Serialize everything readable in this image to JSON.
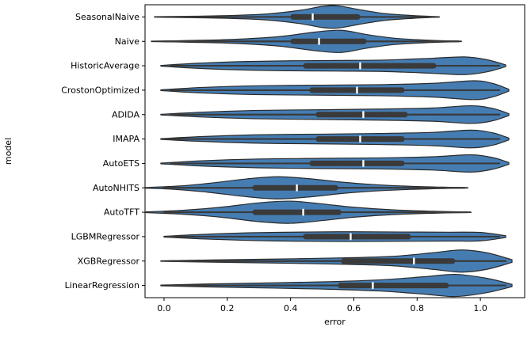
{
  "figure": {
    "background": "#ffffff"
  },
  "chart_data": {
    "type": "violin",
    "orientation": "horizontal",
    "title": "",
    "xlabel": "error",
    "ylabel": "model",
    "xlim": [
      -0.06,
      1.14
    ],
    "xtick_values": [
      0.0,
      0.2,
      0.4,
      0.6,
      0.8,
      1.0
    ],
    "xtick_labels": [
      "0.0",
      "0.2",
      "0.4",
      "0.6",
      "0.8",
      "1.0"
    ],
    "grid": false,
    "legend": "none",
    "colors": {
      "violin_fill": "#3b76af",
      "violin_edge": "#2b2b2b",
      "box": "#3a3a3a",
      "whisker": "#3a3a3a",
      "median": "#ffffff",
      "axis": "#000000"
    },
    "models": [
      {
        "label": "SeasonalNaive",
        "whisker": [
          0.02,
          0.86
        ],
        "box": [
          0.4,
          0.62
        ],
        "median": 0.47,
        "profile": [
          [
            -0.03,
            0.02
          ],
          [
            0.1,
            0.07
          ],
          [
            0.22,
            0.14
          ],
          [
            0.33,
            0.28
          ],
          [
            0.43,
            0.6
          ],
          [
            0.5,
            0.95
          ],
          [
            0.55,
            1.0
          ],
          [
            0.62,
            0.65
          ],
          [
            0.7,
            0.3
          ],
          [
            0.79,
            0.12
          ],
          [
            0.87,
            0.02
          ]
        ]
      },
      {
        "label": "Naive",
        "whisker": [
          0.0,
          0.93
        ],
        "box": [
          0.4,
          0.64
        ],
        "median": 0.49,
        "profile": [
          [
            -0.04,
            0.02
          ],
          [
            0.08,
            0.08
          ],
          [
            0.22,
            0.18
          ],
          [
            0.36,
            0.42
          ],
          [
            0.48,
            0.85
          ],
          [
            0.56,
            1.0
          ],
          [
            0.64,
            0.62
          ],
          [
            0.73,
            0.28
          ],
          [
            0.84,
            0.1
          ],
          [
            0.94,
            0.02
          ]
        ]
      },
      {
        "label": "HistoricAverage",
        "whisker": [
          0.02,
          1.06
        ],
        "box": [
          0.44,
          0.86
        ],
        "median": 0.62,
        "profile": [
          [
            -0.01,
            0.03
          ],
          [
            0.1,
            0.22
          ],
          [
            0.25,
            0.38
          ],
          [
            0.4,
            0.45
          ],
          [
            0.55,
            0.48
          ],
          [
            0.7,
            0.52
          ],
          [
            0.85,
            0.68
          ],
          [
            0.95,
            0.8
          ],
          [
            1.02,
            0.55
          ],
          [
            1.08,
            0.08
          ]
        ]
      },
      {
        "label": "CrostonOptimized",
        "whisker": [
          0.02,
          1.06
        ],
        "box": [
          0.46,
          0.76
        ],
        "median": 0.61,
        "profile": [
          [
            -0.01,
            0.03
          ],
          [
            0.12,
            0.25
          ],
          [
            0.3,
            0.4
          ],
          [
            0.5,
            0.45
          ],
          [
            0.68,
            0.5
          ],
          [
            0.85,
            0.62
          ],
          [
            0.98,
            0.85
          ],
          [
            1.04,
            0.6
          ],
          [
            1.09,
            0.08
          ]
        ]
      },
      {
        "label": "ADIDA",
        "whisker": [
          0.02,
          1.06
        ],
        "box": [
          0.48,
          0.77
        ],
        "median": 0.63,
        "profile": [
          [
            -0.01,
            0.03
          ],
          [
            0.12,
            0.22
          ],
          [
            0.3,
            0.38
          ],
          [
            0.5,
            0.44
          ],
          [
            0.68,
            0.5
          ],
          [
            0.85,
            0.6
          ],
          [
            0.97,
            0.8
          ],
          [
            1.04,
            0.55
          ],
          [
            1.09,
            0.08
          ]
        ]
      },
      {
        "label": "IMAPA",
        "whisker": [
          0.02,
          1.06
        ],
        "box": [
          0.48,
          0.76
        ],
        "median": 0.62,
        "profile": [
          [
            -0.01,
            0.03
          ],
          [
            0.12,
            0.22
          ],
          [
            0.3,
            0.38
          ],
          [
            0.5,
            0.44
          ],
          [
            0.68,
            0.5
          ],
          [
            0.85,
            0.6
          ],
          [
            0.97,
            0.8
          ],
          [
            1.04,
            0.55
          ],
          [
            1.09,
            0.08
          ]
        ]
      },
      {
        "label": "AutoETS",
        "whisker": [
          0.02,
          1.06
        ],
        "box": [
          0.46,
          0.76
        ],
        "median": 0.63,
        "profile": [
          [
            -0.01,
            0.03
          ],
          [
            0.12,
            0.24
          ],
          [
            0.3,
            0.4
          ],
          [
            0.5,
            0.46
          ],
          [
            0.68,
            0.5
          ],
          [
            0.85,
            0.6
          ],
          [
            0.97,
            0.78
          ],
          [
            1.04,
            0.52
          ],
          [
            1.09,
            0.08
          ]
        ]
      },
      {
        "label": "AutoNHITS",
        "whisker": [
          0.0,
          0.95
        ],
        "box": [
          0.28,
          0.55
        ],
        "median": 0.42,
        "profile": [
          [
            -0.06,
            0.03
          ],
          [
            0.04,
            0.15
          ],
          [
            0.14,
            0.4
          ],
          [
            0.26,
            0.8
          ],
          [
            0.36,
            1.0
          ],
          [
            0.46,
            0.82
          ],
          [
            0.56,
            0.52
          ],
          [
            0.66,
            0.3
          ],
          [
            0.78,
            0.14
          ],
          [
            0.9,
            0.05
          ],
          [
            0.96,
            0.02
          ]
        ]
      },
      {
        "label": "AutoTFT",
        "whisker": [
          0.0,
          0.96
        ],
        "box": [
          0.28,
          0.56
        ],
        "median": 0.44,
        "profile": [
          [
            -0.06,
            0.03
          ],
          [
            0.06,
            0.18
          ],
          [
            0.18,
            0.45
          ],
          [
            0.3,
            0.85
          ],
          [
            0.4,
            1.0
          ],
          [
            0.5,
            0.75
          ],
          [
            0.6,
            0.45
          ],
          [
            0.72,
            0.22
          ],
          [
            0.85,
            0.09
          ],
          [
            0.97,
            0.02
          ]
        ]
      },
      {
        "label": "LGBMRegressor",
        "whisker": [
          0.02,
          1.06
        ],
        "box": [
          0.44,
          0.78
        ],
        "median": 0.59,
        "profile": [
          [
            0.0,
            0.03
          ],
          [
            0.12,
            0.2
          ],
          [
            0.28,
            0.35
          ],
          [
            0.45,
            0.42
          ],
          [
            0.6,
            0.44
          ],
          [
            0.75,
            0.42
          ],
          [
            0.9,
            0.4
          ],
          [
            1.0,
            0.38
          ],
          [
            1.08,
            0.08
          ]
        ]
      },
      {
        "label": "XGBRegressor",
        "whisker": [
          0.02,
          1.08
        ],
        "box": [
          0.56,
          0.92
        ],
        "median": 0.79,
        "profile": [
          [
            -0.01,
            0.02
          ],
          [
            0.15,
            0.1
          ],
          [
            0.35,
            0.18
          ],
          [
            0.55,
            0.28
          ],
          [
            0.72,
            0.42
          ],
          [
            0.85,
            0.75
          ],
          [
            0.94,
            1.0
          ],
          [
            1.02,
            0.75
          ],
          [
            1.1,
            0.12
          ]
        ]
      },
      {
        "label": "LinearRegression",
        "whisker": [
          0.02,
          1.08
        ],
        "box": [
          0.55,
          0.9
        ],
        "median": 0.66,
        "profile": [
          [
            -0.01,
            0.03
          ],
          [
            0.15,
            0.14
          ],
          [
            0.35,
            0.24
          ],
          [
            0.52,
            0.34
          ],
          [
            0.68,
            0.5
          ],
          [
            0.82,
            0.78
          ],
          [
            0.92,
            1.0
          ],
          [
            1.02,
            0.65
          ],
          [
            1.1,
            0.1
          ]
        ]
      }
    ]
  }
}
